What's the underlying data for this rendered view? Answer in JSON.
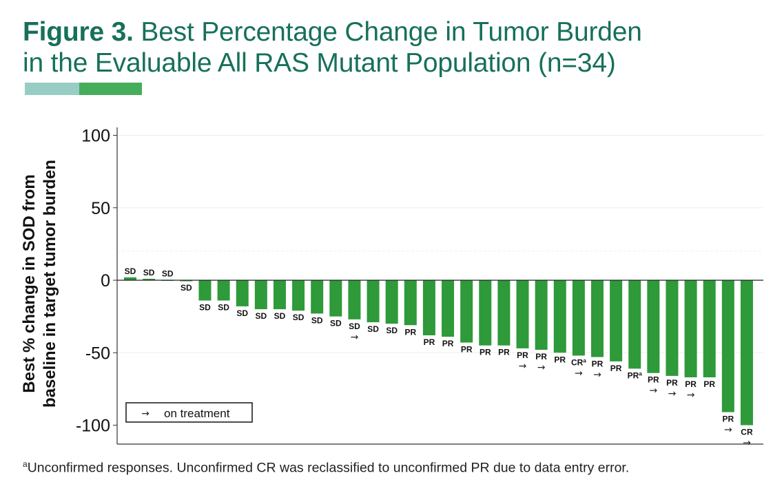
{
  "header": {
    "figure_label": "Figure 3.",
    "title_line1": "Best Percentage Change in Tumor Burden",
    "title_line2": "in the Evaluable All RAS Mutant Population (n=34)"
  },
  "colors": {
    "title": "#17705a",
    "bar": "#2e9a3a",
    "accent_light": "#97cdc4",
    "accent_dark": "#46ad5a"
  },
  "chart_data": {
    "type": "bar",
    "title": "Best Percentage Change in Tumor Burden in the Evaluable All RAS Mutant Population (n=34)",
    "xlabel": "",
    "ylabel_line1": "Best % change in SOD from",
    "ylabel_line2": "baseline in target tumor burden",
    "ylim": [
      -100,
      100
    ],
    "yticks": [
      100,
      50,
      0,
      -50,
      -100
    ],
    "ytick_labels": [
      "100",
      "50",
      "0",
      "-50",
      "-100"
    ],
    "values": [
      2,
      1,
      0.3,
      -0.5,
      -14,
      -14,
      -18,
      -20,
      -20,
      -21,
      -23,
      -25,
      -27,
      -29,
      -30,
      -31,
      -38,
      -39,
      -43,
      -45,
      -45,
      -47,
      -48,
      -50,
      -52,
      -53,
      -56,
      -61,
      -64,
      -66,
      -67,
      -67,
      -91,
      -100
    ],
    "responses": [
      "SD",
      "SD",
      "SD",
      "SD",
      "SD",
      "SD",
      "SD",
      "SD",
      "SD",
      "SD",
      "SD",
      "SD",
      "SD",
      "SD",
      "SD",
      "PR",
      "PR",
      "PR",
      "PR",
      "PR",
      "PR",
      "PR",
      "PR",
      "PR",
      "CR",
      "PR",
      "PR",
      "PR",
      "PR",
      "PR",
      "PR",
      "PR",
      "PR",
      "CR"
    ],
    "unconfirmed": [
      24,
      27
    ],
    "on_treatment": [
      12,
      21,
      22,
      24,
      25,
      28,
      29,
      30,
      32,
      33
    ],
    "legend": {
      "symbol": "→",
      "label": "on treatment",
      "placement": "bottom-left"
    },
    "superscript": "a",
    "arrow": "→"
  },
  "footnote": {
    "marker": "a",
    "text": "Unconfirmed responses. Unconfirmed CR was reclassified to unconfirmed PR due to data entry error."
  }
}
